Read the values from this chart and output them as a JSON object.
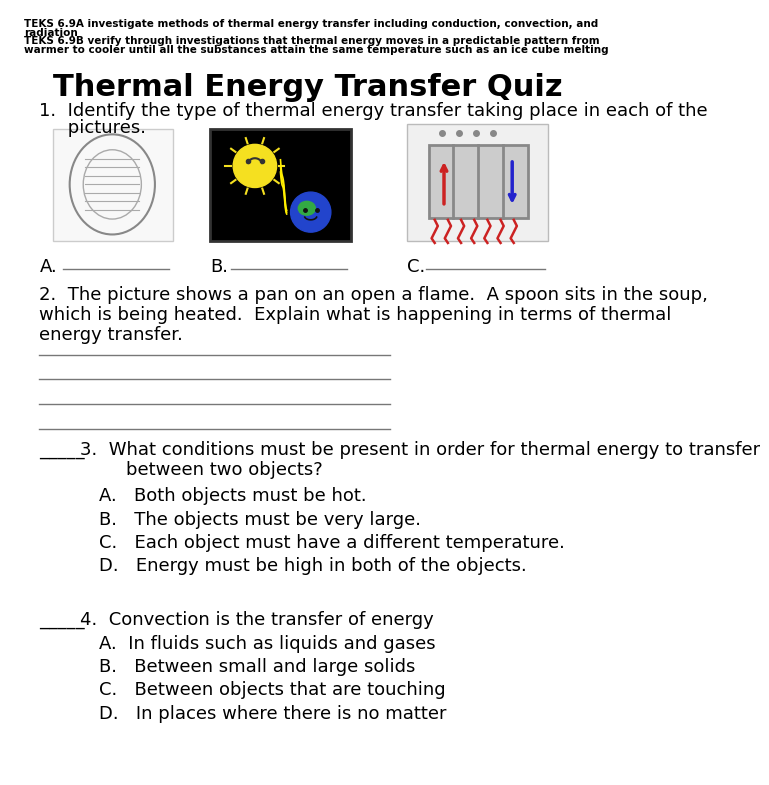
{
  "background_color": "#ffffff",
  "header_text_line1": "TEKS 6.9A investigate methods of thermal energy transfer including conduction, convection, and",
  "header_text_line2": "radiation",
  "header_text_line3": "TEKS 6.9B verify through investigations that thermal energy moves in a predictable pattern from",
  "header_text_line4": "warmer to cooler until all the substances attain the same temperature such as an ice cube melting",
  "title": "Thermal Energy Transfer Quiz",
  "q1_line1": "1.  Identify the type of thermal energy transfer taking place in each of the",
  "q1_line2": "     pictures.",
  "q1_label_a": "A.",
  "q1_label_b": "B.",
  "q1_label_c": "C.",
  "q2_line1": "2.  The picture shows a pan on an open a flame.  A spoon sits in the soup,",
  "q2_line2": "which is being heated.  Explain what is happening in terms of thermal",
  "q2_line3": "energy transfer.",
  "q3_stem1": "3.  What conditions must be present in order for thermal energy to transfer",
  "q3_stem2": "        between two objects?",
  "q3_a": "A.   Both objects must be hot.",
  "q3_b": "B.   The objects must be very large.",
  "q3_c": "C.   Each object must have a different temperature.",
  "q3_d": "D.   Energy must be high in both of the objects.",
  "q4_stem": "4.  Convection is the transfer of energy",
  "q4_a": "A.  In fluids such as liquids and gases",
  "q4_b": "B.   Between small and large solids",
  "q4_c": "C.   Between objects that are touching",
  "q4_d": "D.   In places where there is no matter",
  "blank": "_____",
  "header_fontsize": 7.5,
  "title_fontsize": 22,
  "body_fontsize": 13,
  "line_color": "#777777",
  "text_color": "#000000"
}
